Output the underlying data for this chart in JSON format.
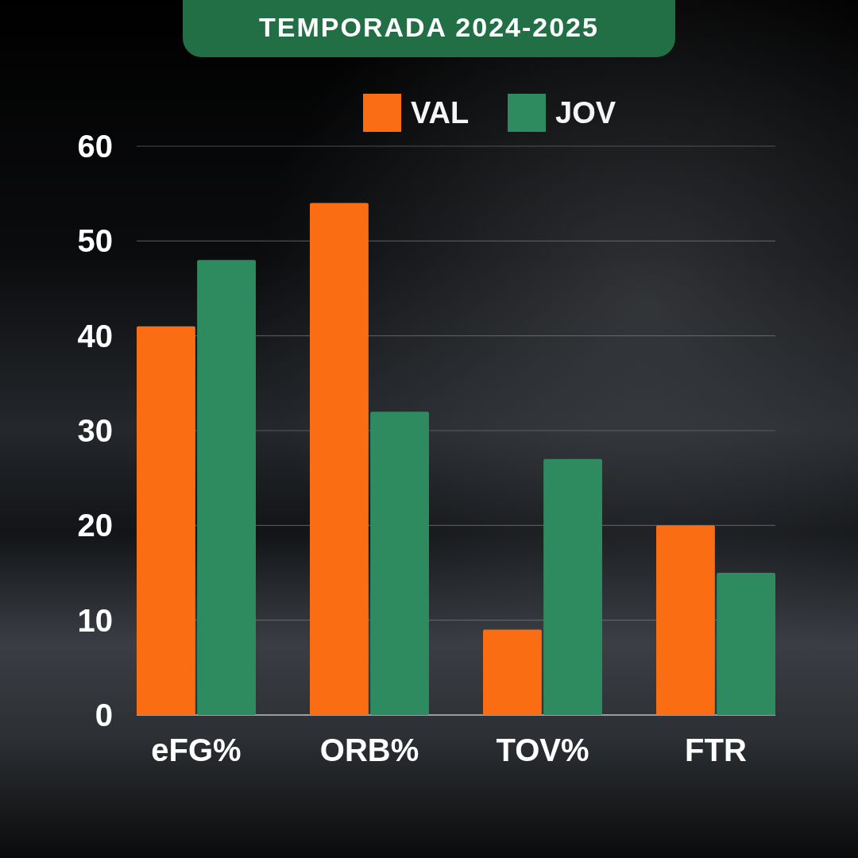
{
  "chart_data": {
    "type": "bar",
    "title": "TEMPORADA 2024-2025",
    "categories": [
      "eFG%",
      "ORB%",
      "TOV%",
      "FTR"
    ],
    "series": [
      {
        "name": "VAL",
        "color": "#fb6d12",
        "values": [
          41,
          54,
          9,
          20
        ]
      },
      {
        "name": "JOV",
        "color": "#2e8b5f",
        "values": [
          48,
          32,
          27,
          15
        ]
      }
    ],
    "ylim": [
      0,
      60
    ],
    "yticks": [
      0,
      10,
      20,
      30,
      40,
      50,
      60
    ],
    "grid": "y",
    "legend": "top"
  }
}
